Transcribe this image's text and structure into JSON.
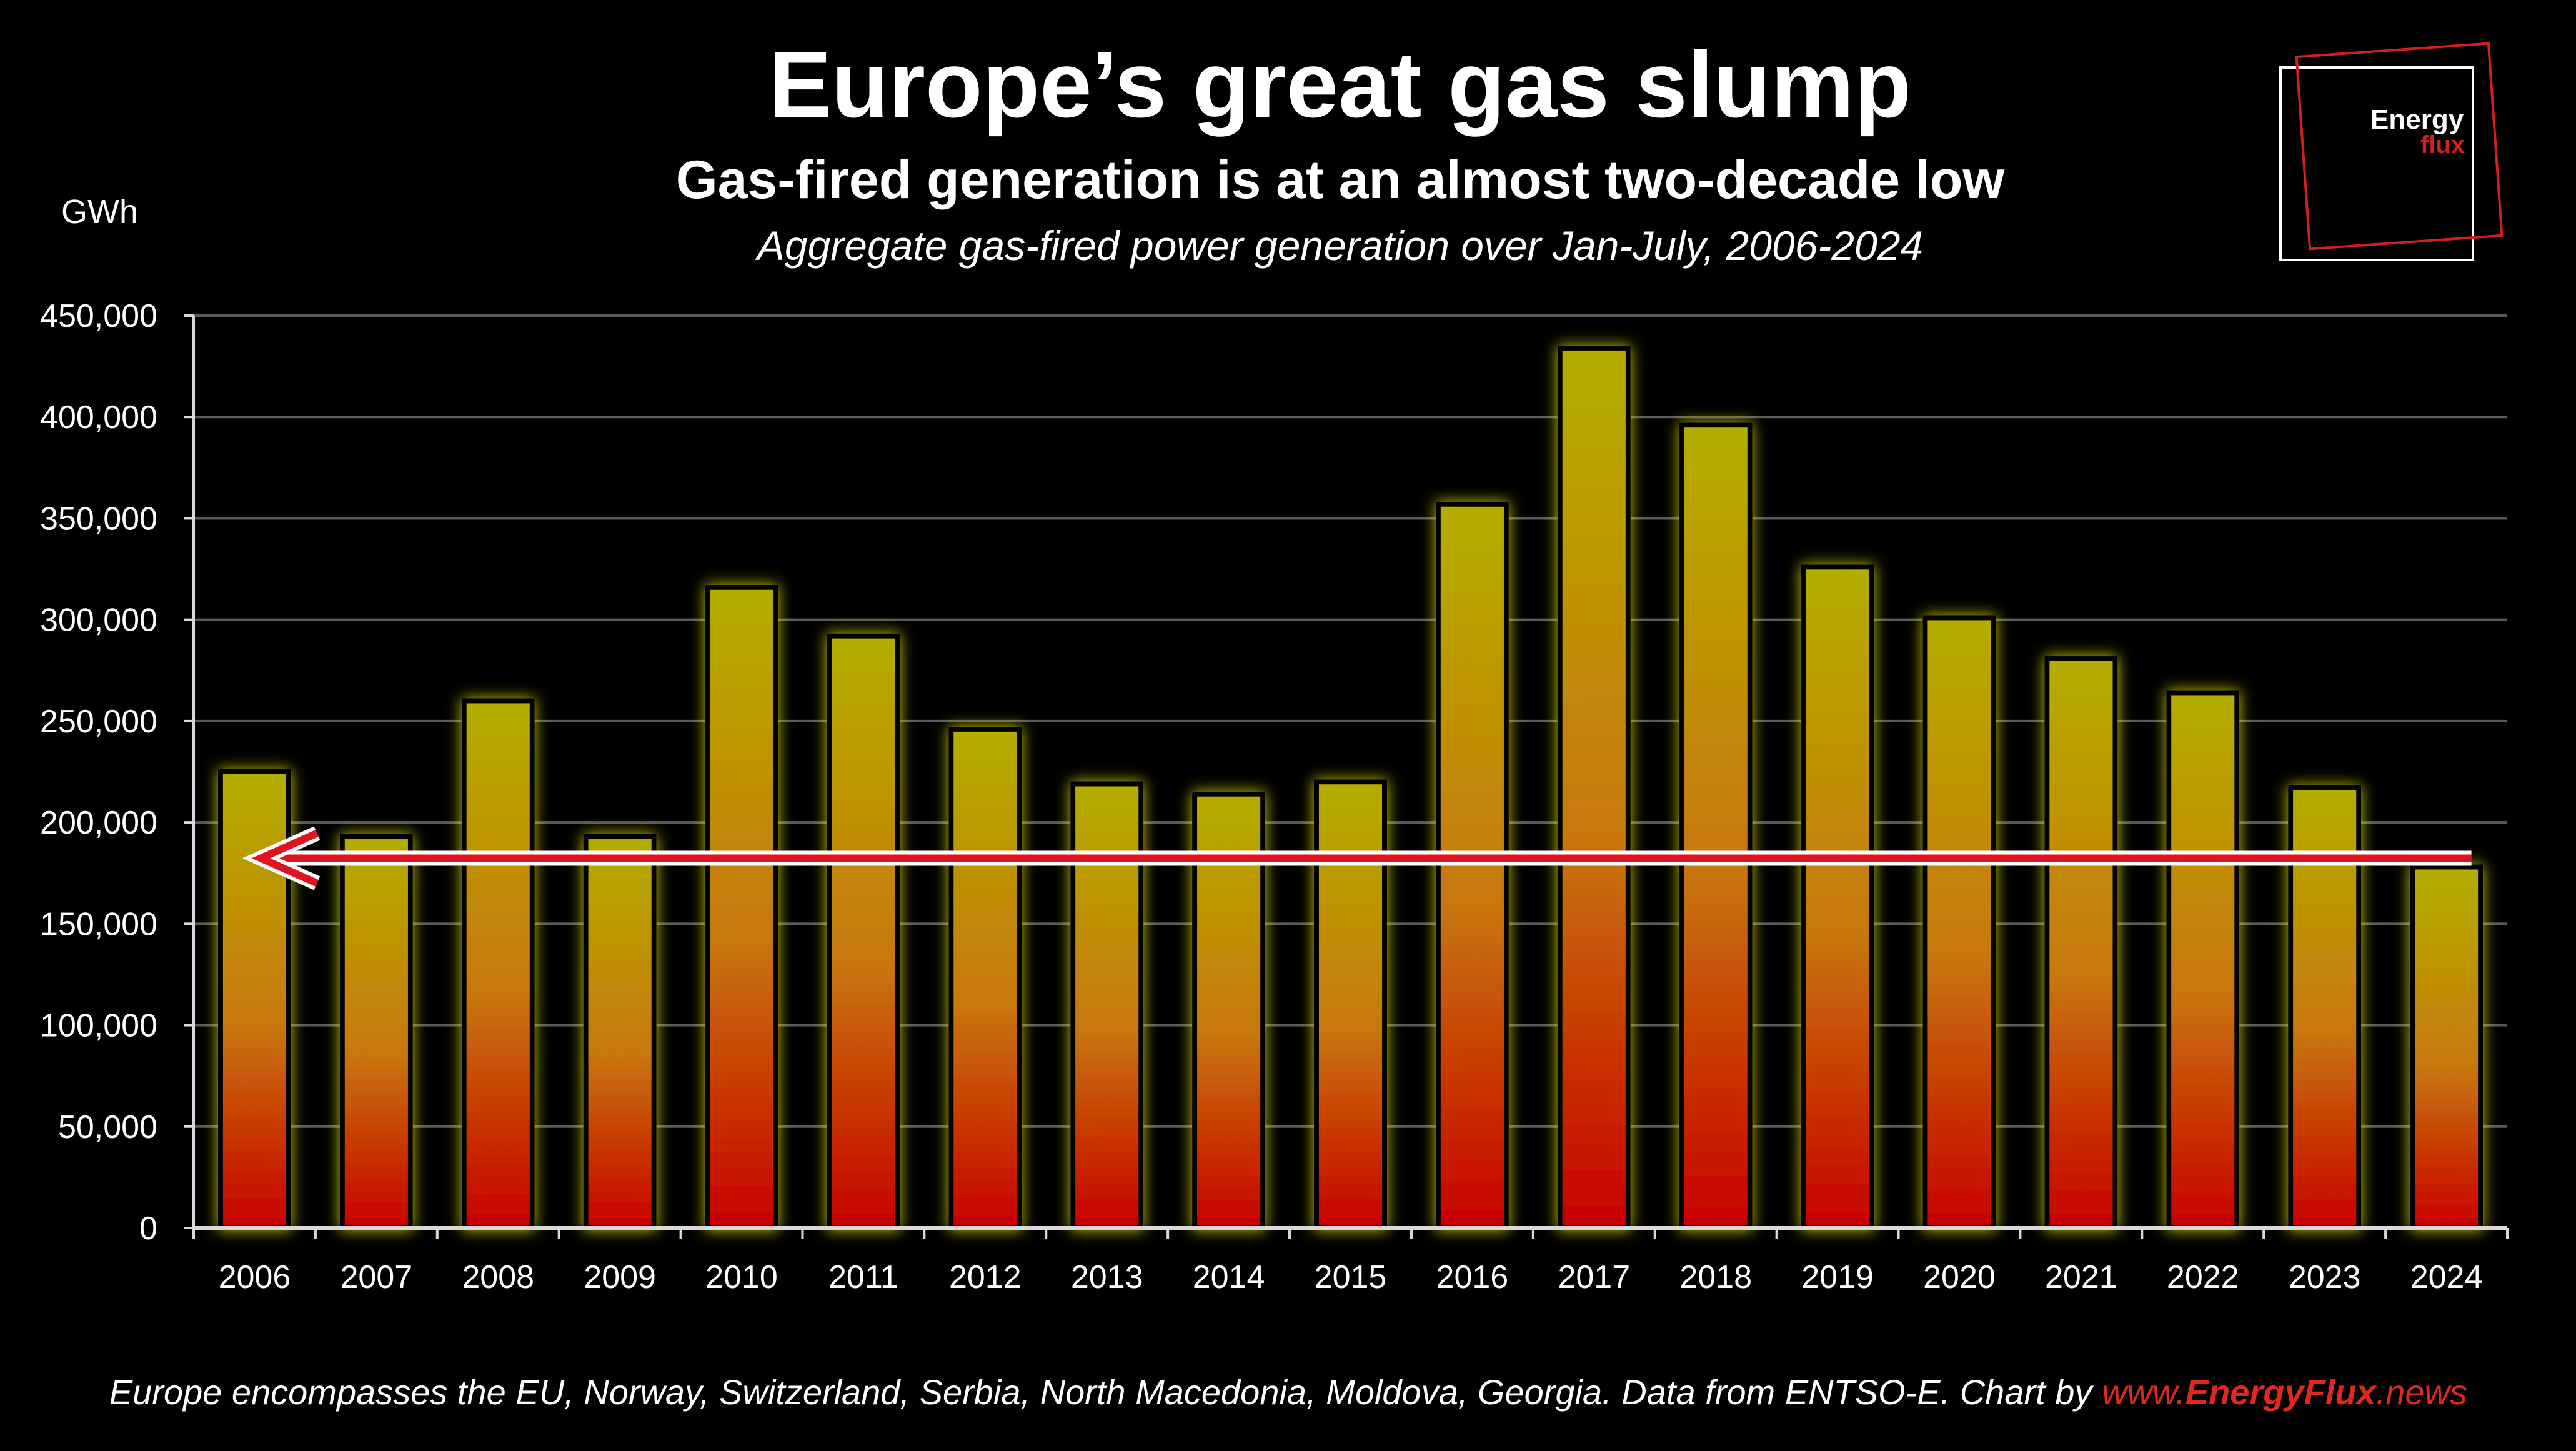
{
  "title": "Europe’s great gas slump",
  "subtitle": "Gas-fired generation is at an almost two-decade low",
  "caption": "Aggregate gas-fired power generation over Jan-July, 2006-2024",
  "logo": {
    "line1": "Energy",
    "line2": "flux"
  },
  "footer": {
    "text": "Europe encompasses the EU, Norway, Switzerland, Serbia, North Macedonia, Moldova, Georgia. Data from ENTSO-E. Chart by ",
    "link_prefix": "www.",
    "link_main": "EnergyFlux",
    "link_suffix": ".news"
  },
  "colors": {
    "bar_top": "#b4ae00",
    "bar_mid": "#c8780a",
    "bar_bottom": "#c80000",
    "bar_glow": "#e6e600",
    "arrow": "#e0141e",
    "grid": "#5a5a5a"
  },
  "chart_data": {
    "type": "bar",
    "ylabel": "GWh",
    "xlabel": "",
    "ylim": [
      0,
      450000
    ],
    "yticks": [
      "0",
      "50,000",
      "100,000",
      "150,000",
      "200,000",
      "250,000",
      "300,000",
      "350,000",
      "400,000",
      "450,000"
    ],
    "categories": [
      "2006",
      "2007",
      "2008",
      "2009",
      "2010",
      "2011",
      "2012",
      "2013",
      "2014",
      "2015",
      "2016",
      "2017",
      "2018",
      "2019",
      "2020",
      "2021",
      "2022",
      "2023",
      "2024"
    ],
    "values": [
      225000,
      193000,
      260000,
      193000,
      316000,
      292000,
      246000,
      219000,
      214000,
      220000,
      357000,
      434000,
      396000,
      326000,
      301000,
      281000,
      264000,
      217000,
      178000
    ],
    "grid": true,
    "annotation": {
      "type": "arrow",
      "from_category": "2024",
      "to_category": "2006",
      "value": 178000
    }
  }
}
